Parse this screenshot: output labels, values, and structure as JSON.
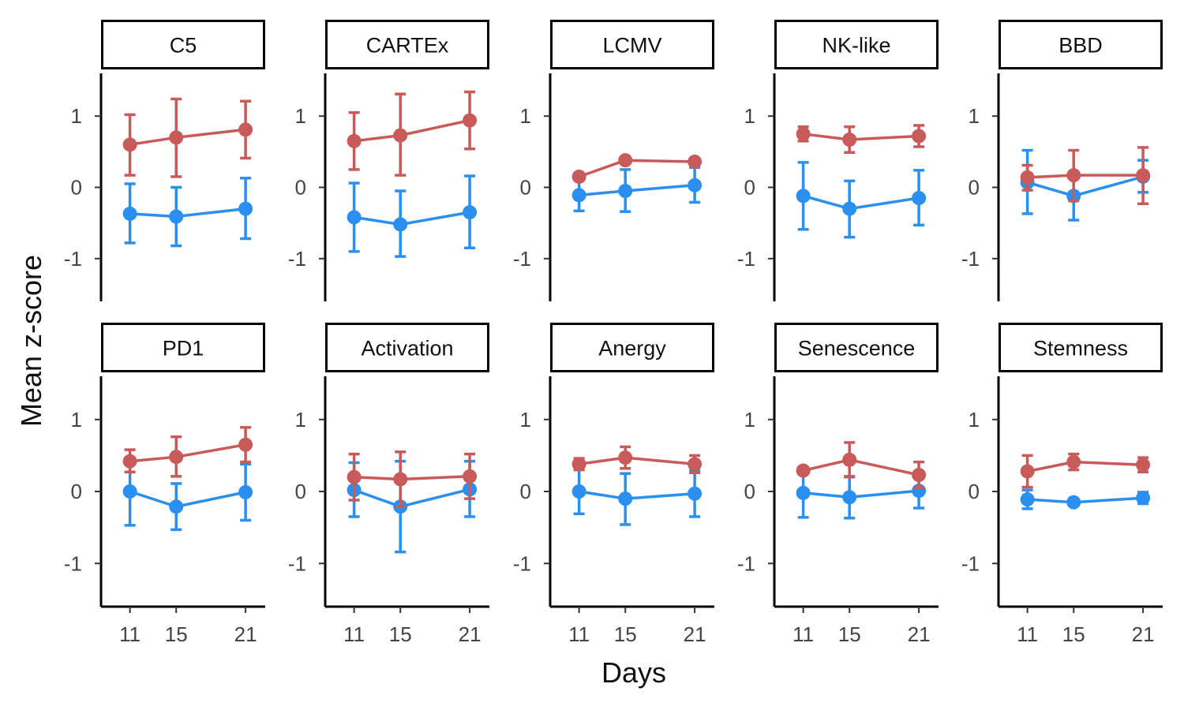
{
  "chart_data": {
    "type": "line",
    "xlabel": "Days",
    "ylabel": "Mean z-score",
    "x": [
      11,
      15,
      21
    ],
    "x_ticks": [
      "11",
      "15",
      "21"
    ],
    "y_ticks": [
      1,
      0,
      -1
    ],
    "y_tick_labels": [
      "1",
      "0",
      "-1"
    ],
    "ylim": [
      -1.6,
      1.6
    ],
    "legend": "none",
    "grid": false,
    "series_colors": {
      "red": "#c85a5a",
      "blue": "#2b8ff0"
    },
    "panels": [
      {
        "title": "C5",
        "series": [
          {
            "color_key": "red",
            "values": [
              0.6,
              0.7,
              0.81
            ],
            "err_low": [
              0.17,
              0.15,
              0.41
            ],
            "err_high": [
              1.02,
              1.24,
              1.21
            ]
          },
          {
            "color_key": "blue",
            "values": [
              -0.37,
              -0.41,
              -0.3
            ],
            "err_low": [
              -0.78,
              -0.82,
              -0.72
            ],
            "err_high": [
              0.05,
              0.0,
              0.13
            ]
          }
        ]
      },
      {
        "title": "CARTEx",
        "series": [
          {
            "color_key": "red",
            "values": [
              0.65,
              0.73,
              0.94
            ],
            "err_low": [
              0.25,
              0.17,
              0.54
            ],
            "err_high": [
              1.05,
              1.31,
              1.34
            ]
          },
          {
            "color_key": "blue",
            "values": [
              -0.42,
              -0.52,
              -0.35
            ],
            "err_low": [
              -0.9,
              -0.97,
              -0.85
            ],
            "err_high": [
              0.06,
              -0.05,
              0.16
            ]
          }
        ]
      },
      {
        "title": "LCMV",
        "series": [
          {
            "color_key": "red",
            "values": [
              0.15,
              0.38,
              0.36
            ],
            "err_low": [
              0.1,
              0.34,
              0.32
            ],
            "err_high": [
              0.2,
              0.42,
              0.4
            ]
          },
          {
            "color_key": "blue",
            "values": [
              -0.11,
              -0.05,
              0.03
            ],
            "err_low": [
              -0.33,
              -0.34,
              -0.21
            ],
            "err_high": [
              0.12,
              0.25,
              0.28
            ]
          }
        ]
      },
      {
        "title": "NK-like",
        "series": [
          {
            "color_key": "red",
            "values": [
              0.75,
              0.67,
              0.72
            ],
            "err_low": [
              0.65,
              0.49,
              0.57
            ],
            "err_high": [
              0.85,
              0.85,
              0.87
            ]
          },
          {
            "color_key": "blue",
            "values": [
              -0.12,
              -0.3,
              -0.15
            ],
            "err_low": [
              -0.59,
              -0.7,
              -0.53
            ],
            "err_high": [
              0.35,
              0.09,
              0.24
            ]
          }
        ]
      },
      {
        "title": "BBD",
        "series": [
          {
            "color_key": "red",
            "values": [
              0.14,
              0.17,
              0.17
            ],
            "err_low": [
              -0.04,
              -0.19,
              -0.23
            ],
            "err_high": [
              0.31,
              0.52,
              0.56
            ]
          },
          {
            "color_key": "blue",
            "values": [
              0.07,
              -0.12,
              0.15
            ],
            "err_low": [
              -0.37,
              -0.46,
              -0.07
            ],
            "err_high": [
              0.52,
              0.21,
              0.38
            ]
          }
        ]
      },
      {
        "title": "PD1",
        "series": [
          {
            "color_key": "red",
            "values": [
              0.42,
              0.48,
              0.65
            ],
            "err_low": [
              0.27,
              0.21,
              0.41
            ],
            "err_high": [
              0.58,
              0.76,
              0.89
            ]
          },
          {
            "color_key": "blue",
            "values": [
              0.0,
              -0.21,
              -0.01
            ],
            "err_low": [
              -0.47,
              -0.53,
              -0.4
            ],
            "err_high": [
              0.45,
              0.11,
              0.38
            ]
          }
        ]
      },
      {
        "title": "Activation",
        "series": [
          {
            "color_key": "red",
            "values": [
              0.2,
              0.17,
              0.21
            ],
            "err_low": [
              -0.12,
              -0.21,
              -0.1
            ],
            "err_high": [
              0.52,
              0.55,
              0.52
            ]
          },
          {
            "color_key": "blue",
            "values": [
              0.02,
              -0.21,
              0.03
            ],
            "err_low": [
              -0.35,
              -0.84,
              -0.35
            ],
            "err_high": [
              0.4,
              0.42,
              0.42
            ]
          }
        ]
      },
      {
        "title": "Anergy",
        "series": [
          {
            "color_key": "red",
            "values": [
              0.38,
              0.47,
              0.38
            ],
            "err_low": [
              0.3,
              0.32,
              0.26
            ],
            "err_high": [
              0.46,
              0.62,
              0.5
            ]
          },
          {
            "color_key": "blue",
            "values": [
              0.0,
              -0.1,
              -0.03
            ],
            "err_low": [
              -0.31,
              -0.46,
              -0.35
            ],
            "err_high": [
              0.31,
              0.25,
              0.29
            ]
          }
        ]
      },
      {
        "title": "Senescence",
        "series": [
          {
            "color_key": "red",
            "values": [
              0.29,
              0.44,
              0.23
            ],
            "err_low": [
              0.27,
              0.2,
              0.05
            ],
            "err_high": [
              0.31,
              0.68,
              0.41
            ]
          },
          {
            "color_key": "blue",
            "values": [
              -0.02,
              -0.08,
              0.01
            ],
            "err_low": [
              -0.36,
              -0.37,
              -0.23
            ],
            "err_high": [
              0.31,
              0.21,
              0.25
            ]
          }
        ]
      },
      {
        "title": "Stemness",
        "series": [
          {
            "color_key": "red",
            "values": [
              0.28,
              0.41,
              0.37
            ],
            "err_low": [
              0.06,
              0.3,
              0.27
            ],
            "err_high": [
              0.5,
              0.52,
              0.47
            ]
          },
          {
            "color_key": "blue",
            "values": [
              -0.11,
              -0.15,
              -0.09
            ],
            "err_low": [
              -0.24,
              -0.2,
              -0.17
            ],
            "err_high": [
              0.02,
              -0.1,
              -0.01
            ]
          }
        ]
      }
    ]
  }
}
